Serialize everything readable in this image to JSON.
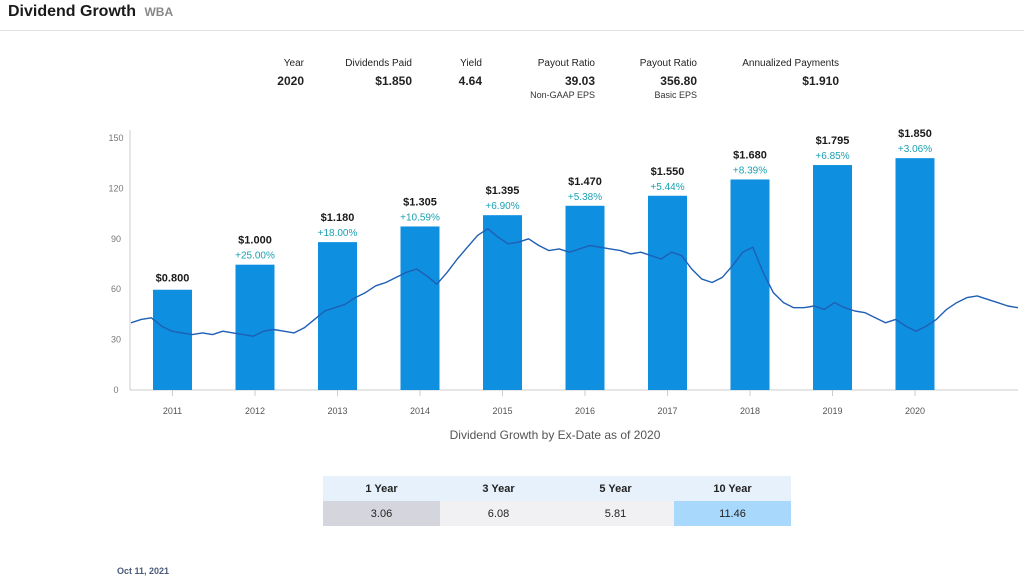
{
  "header": {
    "title": "Dividend Growth",
    "ticker": "WBA"
  },
  "stats": [
    {
      "label": "Year",
      "value": "2020",
      "sub": ""
    },
    {
      "label": "Dividends Paid",
      "value": "$1.850",
      "sub": ""
    },
    {
      "label": "Yield",
      "value": "4.64",
      "sub": ""
    },
    {
      "label": "Payout Ratio",
      "value": "39.03",
      "sub": "Non-GAAP EPS"
    },
    {
      "label": "Payout Ratio",
      "value": "356.80",
      "sub": "Basic EPS"
    },
    {
      "label": "Annualized Payments",
      "value": "$1.910",
      "sub": ""
    }
  ],
  "chart_data": {
    "type": "bar",
    "categories": [
      "2011",
      "2012",
      "2013",
      "2014",
      "2015",
      "2016",
      "2017",
      "2018",
      "2019",
      "2020"
    ],
    "values": [
      0.8,
      1.0,
      1.18,
      1.305,
      1.395,
      1.47,
      1.55,
      1.68,
      1.795,
      1.85
    ],
    "value_labels": [
      "$0.800",
      "$1.000",
      "$1.180",
      "$1.305",
      "$1.395",
      "$1.470",
      "$1.550",
      "$1.680",
      "$1.795",
      "$1.850"
    ],
    "growth_labels": [
      "",
      "+25.00%",
      "+18.00%",
      "+10.59%",
      "+6.90%",
      "+5.38%",
      "+5.44%",
      "+8.39%",
      "+6.85%",
      "+3.06%"
    ],
    "y_ticks": [
      "0",
      "30",
      "60",
      "90",
      "120",
      "150"
    ],
    "ylim": [
      0,
      150
    ],
    "price_series": {
      "x_range": [
        "2010.75",
        "2021.78"
      ],
      "values": [
        40,
        42,
        43,
        38,
        35,
        34,
        33,
        34,
        33,
        35,
        34,
        33,
        32,
        35,
        36,
        35,
        34,
        37,
        42,
        47,
        49,
        51,
        55,
        58,
        62,
        64,
        67,
        70,
        72,
        68,
        63,
        70,
        78,
        85,
        92,
        96,
        91,
        87,
        88,
        90,
        86,
        83,
        84,
        82,
        84,
        86,
        85,
        84,
        83,
        81,
        82,
        80,
        78,
        82,
        80,
        72,
        66,
        64,
        67,
        74,
        82,
        85,
        70,
        58,
        52,
        49,
        49,
        50,
        48,
        52,
        49,
        47,
        46,
        43,
        40,
        42,
        38,
        35,
        38,
        42,
        48,
        52,
        55,
        56,
        54,
        52,
        50,
        49
      ]
    },
    "grid": false,
    "line_color": "#1f5fb5",
    "bar_color": "#0e8fe0",
    "growth_color": "#1aa0b0"
  },
  "caption": "Dividend Growth by Ex-Date as of 2020",
  "growth_table": {
    "headers": [
      "1 Year",
      "3 Year",
      "5 Year",
      "10 Year"
    ],
    "values": [
      "3.06",
      "6.08",
      "5.81",
      "11.46"
    ],
    "cell_colors": [
      "#d5d6dd",
      "#f1f1f3",
      "#f1f1f3",
      "#a8d8fb"
    ]
  },
  "date": "Oct 11, 2021"
}
